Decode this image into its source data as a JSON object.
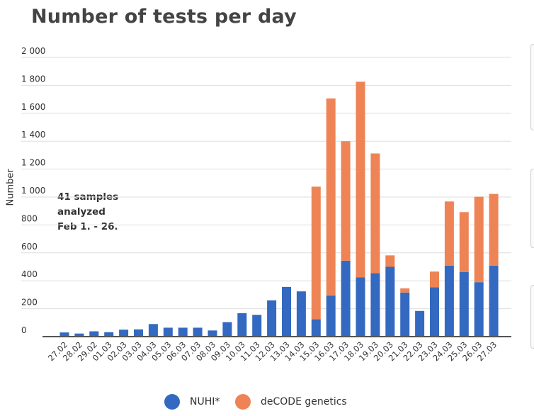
{
  "title": "Number of tests per day",
  "colors": {
    "nuhi": "#3369c0",
    "decode": "#ee8455",
    "grid": "#dddddd",
    "axis": "#555555"
  },
  "annotation": [
    "41 samples",
    "analyzed",
    "Feb 1. - 26."
  ],
  "legend": [
    {
      "label": "NUHI*",
      "color": "#3369c0"
    },
    {
      "label": "deCODE genetics",
      "color": "#ee8455"
    }
  ],
  "chart_data": {
    "type": "bar",
    "stacked": true,
    "title": "Number of tests per day",
    "xlabel": "",
    "ylabel": "Number",
    "ylim": [
      0,
      2000
    ],
    "yticks": [
      0,
      200,
      400,
      600,
      800,
      1000,
      1200,
      1400,
      1600,
      1800,
      2000
    ],
    "ytick_labels": [
      "0",
      "200",
      "400",
      "600",
      "800",
      "1 000",
      "1 200",
      "1 400",
      "1 600",
      "1 800",
      "2 000"
    ],
    "grid": true,
    "legend_position": "bottom",
    "categories": [
      "27.02",
      "28.02",
      "29.02",
      "01.03",
      "02.03",
      "03.03",
      "04.03",
      "05.03",
      "06.03",
      "07.03",
      "08.03",
      "09.03",
      "10.03",
      "11.03",
      "12.03",
      "13.03",
      "14.03",
      "15.03",
      "16.03",
      "17.03",
      "18.03",
      "19.03",
      "20.03",
      "21.03",
      "22.03",
      "23.03",
      "24.03",
      "25.03",
      "26.03",
      "27.03"
    ],
    "series": [
      {
        "name": "NUHI*",
        "values": [
          30,
          22,
          38,
          32,
          50,
          52,
          90,
          64,
          64,
          64,
          44,
          104,
          168,
          156,
          260,
          356,
          324,
          124,
          294,
          544,
          424,
          454,
          500,
          316,
          184,
          354,
          508,
          462,
          390,
          508
        ]
      },
      {
        "name": "deCODE genetics",
        "values": [
          0,
          0,
          0,
          0,
          0,
          0,
          0,
          0,
          0,
          0,
          0,
          0,
          0,
          0,
          0,
          0,
          0,
          950,
          1412,
          856,
          1402,
          858,
          82,
          30,
          0,
          112,
          460,
          430,
          612,
          514
        ]
      }
    ]
  }
}
